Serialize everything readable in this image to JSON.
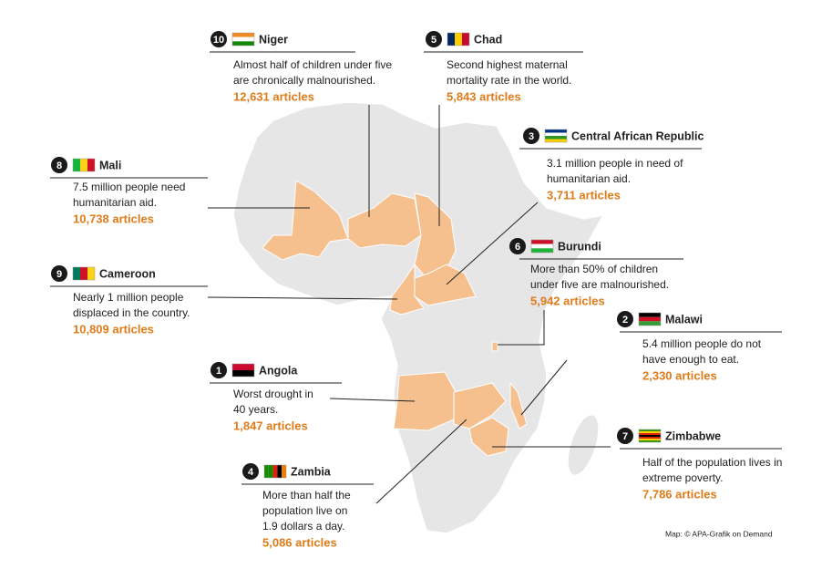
{
  "callouts": [
    {
      "rank": 10,
      "country": "Niger",
      "description": [
        "Almost half of children under five",
        "are chronically malnourished."
      ],
      "articles": "12,631 articles"
    },
    {
      "rank": 5,
      "country": "Chad",
      "description": [
        "Second highest maternal",
        "mortality rate in the world."
      ],
      "articles": "5,843 articles"
    },
    {
      "rank": 3,
      "country": "Central African Republic",
      "description": [
        "3.1 million people in need of",
        "humanitarian aid."
      ],
      "articles": "3,711 articles"
    },
    {
      "rank": 8,
      "country": "Mali",
      "description": [
        "7.5 million people need",
        "humanitarian aid."
      ],
      "articles": "10,738 articles"
    },
    {
      "rank": 6,
      "country": "Burundi",
      "description": [
        "More than 50% of children",
        "under five are malnourished."
      ],
      "articles": "5,942 articles"
    },
    {
      "rank": 9,
      "country": "Cameroon",
      "description": [
        "Nearly 1 million people",
        "displaced in the country."
      ],
      "articles": "10,809 articles"
    },
    {
      "rank": 2,
      "country": "Malawi",
      "description": [
        "5.4 million people do not",
        "have enough to eat."
      ],
      "articles": "2,330 articles"
    },
    {
      "rank": 1,
      "country": "Angola",
      "description": [
        "Worst drought in",
        "40 years."
      ],
      "articles": "1,847 articles"
    },
    {
      "rank": 7,
      "country": "Zimbabwe",
      "description": [
        "Half of the population lives in",
        "extreme poverty."
      ],
      "articles": "7,786 articles"
    },
    {
      "rank": 4,
      "country": "Zambia",
      "description": [
        "More than half the",
        "population live on",
        "1.9 dollars a day."
      ],
      "articles": "5,086 articles"
    }
  ],
  "credit": "Map: © APA-Grafik on Demand"
}
